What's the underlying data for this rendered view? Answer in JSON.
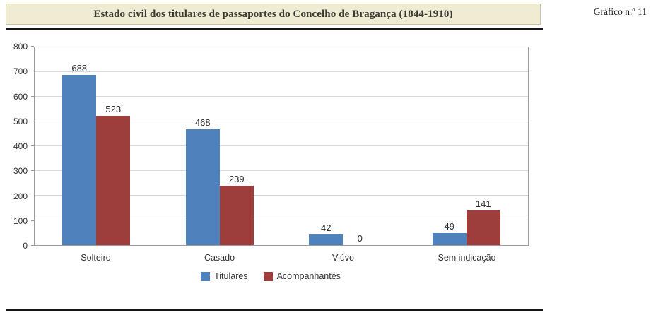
{
  "header": {
    "title": "Estado civil dos titulares de passaportes do Concelho de Bragança (1844-1910)",
    "corner_label": "Gráfico n.º 11"
  },
  "chart_data": {
    "type": "bar",
    "title": "Estado civil dos titulares de passaportes do Concelho de Bragança (1844-1910)",
    "categories": [
      "Solteiro",
      "Casado",
      "Viúvo",
      "Sem indicação"
    ],
    "series": [
      {
        "name": "Titulares",
        "color": "#4f81bd",
        "values": [
          688,
          468,
          42,
          49
        ]
      },
      {
        "name": "Acompanhantes",
        "color": "#9e3e3c",
        "values": [
          523,
          239,
          0,
          141
        ]
      }
    ],
    "xlabel": "",
    "ylabel": "",
    "ylim": [
      0,
      800
    ],
    "ytick_step": 100,
    "grid": true,
    "legend_position": "bottom"
  }
}
